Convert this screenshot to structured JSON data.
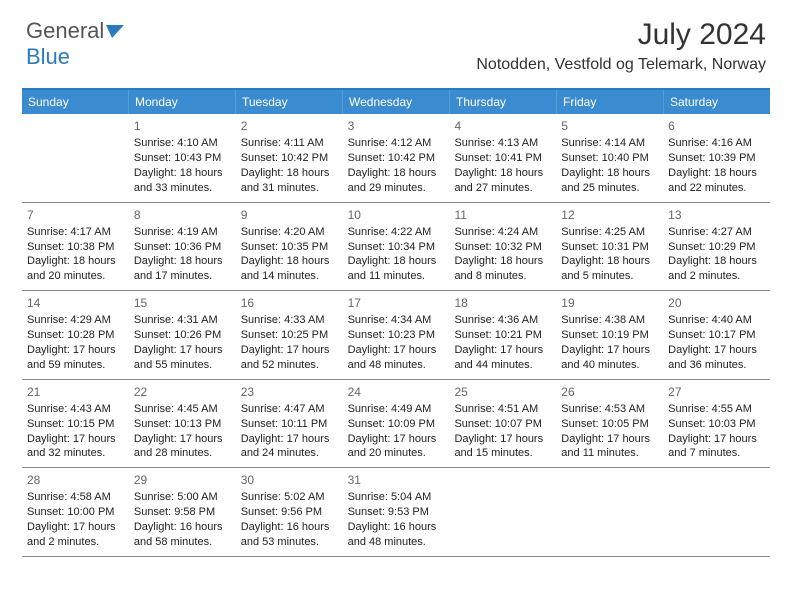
{
  "logo": {
    "part1": "General",
    "part2": "Blue"
  },
  "title": "July 2024",
  "location": "Notodden, Vestfold og Telemark, Norway",
  "colors": {
    "header_bg": "#3a8bd0",
    "accent": "#2b7bbf",
    "text": "#333333",
    "muted": "#666666",
    "border": "#888888"
  },
  "day_names": [
    "Sunday",
    "Monday",
    "Tuesday",
    "Wednesday",
    "Thursday",
    "Friday",
    "Saturday"
  ],
  "weeks": [
    [
      {
        "blank": true
      },
      {
        "n": "1",
        "sr": "Sunrise: 4:10 AM",
        "ss": "Sunset: 10:43 PM",
        "d1": "Daylight: 18 hours",
        "d2": "and 33 minutes."
      },
      {
        "n": "2",
        "sr": "Sunrise: 4:11 AM",
        "ss": "Sunset: 10:42 PM",
        "d1": "Daylight: 18 hours",
        "d2": "and 31 minutes."
      },
      {
        "n": "3",
        "sr": "Sunrise: 4:12 AM",
        "ss": "Sunset: 10:42 PM",
        "d1": "Daylight: 18 hours",
        "d2": "and 29 minutes."
      },
      {
        "n": "4",
        "sr": "Sunrise: 4:13 AM",
        "ss": "Sunset: 10:41 PM",
        "d1": "Daylight: 18 hours",
        "d2": "and 27 minutes."
      },
      {
        "n": "5",
        "sr": "Sunrise: 4:14 AM",
        "ss": "Sunset: 10:40 PM",
        "d1": "Daylight: 18 hours",
        "d2": "and 25 minutes."
      },
      {
        "n": "6",
        "sr": "Sunrise: 4:16 AM",
        "ss": "Sunset: 10:39 PM",
        "d1": "Daylight: 18 hours",
        "d2": "and 22 minutes."
      }
    ],
    [
      {
        "n": "7",
        "sr": "Sunrise: 4:17 AM",
        "ss": "Sunset: 10:38 PM",
        "d1": "Daylight: 18 hours",
        "d2": "and 20 minutes."
      },
      {
        "n": "8",
        "sr": "Sunrise: 4:19 AM",
        "ss": "Sunset: 10:36 PM",
        "d1": "Daylight: 18 hours",
        "d2": "and 17 minutes."
      },
      {
        "n": "9",
        "sr": "Sunrise: 4:20 AM",
        "ss": "Sunset: 10:35 PM",
        "d1": "Daylight: 18 hours",
        "d2": "and 14 minutes."
      },
      {
        "n": "10",
        "sr": "Sunrise: 4:22 AM",
        "ss": "Sunset: 10:34 PM",
        "d1": "Daylight: 18 hours",
        "d2": "and 11 minutes."
      },
      {
        "n": "11",
        "sr": "Sunrise: 4:24 AM",
        "ss": "Sunset: 10:32 PM",
        "d1": "Daylight: 18 hours",
        "d2": "and 8 minutes."
      },
      {
        "n": "12",
        "sr": "Sunrise: 4:25 AM",
        "ss": "Sunset: 10:31 PM",
        "d1": "Daylight: 18 hours",
        "d2": "and 5 minutes."
      },
      {
        "n": "13",
        "sr": "Sunrise: 4:27 AM",
        "ss": "Sunset: 10:29 PM",
        "d1": "Daylight: 18 hours",
        "d2": "and 2 minutes."
      }
    ],
    [
      {
        "n": "14",
        "sr": "Sunrise: 4:29 AM",
        "ss": "Sunset: 10:28 PM",
        "d1": "Daylight: 17 hours",
        "d2": "and 59 minutes."
      },
      {
        "n": "15",
        "sr": "Sunrise: 4:31 AM",
        "ss": "Sunset: 10:26 PM",
        "d1": "Daylight: 17 hours",
        "d2": "and 55 minutes."
      },
      {
        "n": "16",
        "sr": "Sunrise: 4:33 AM",
        "ss": "Sunset: 10:25 PM",
        "d1": "Daylight: 17 hours",
        "d2": "and 52 minutes."
      },
      {
        "n": "17",
        "sr": "Sunrise: 4:34 AM",
        "ss": "Sunset: 10:23 PM",
        "d1": "Daylight: 17 hours",
        "d2": "and 48 minutes."
      },
      {
        "n": "18",
        "sr": "Sunrise: 4:36 AM",
        "ss": "Sunset: 10:21 PM",
        "d1": "Daylight: 17 hours",
        "d2": "and 44 minutes."
      },
      {
        "n": "19",
        "sr": "Sunrise: 4:38 AM",
        "ss": "Sunset: 10:19 PM",
        "d1": "Daylight: 17 hours",
        "d2": "and 40 minutes."
      },
      {
        "n": "20",
        "sr": "Sunrise: 4:40 AM",
        "ss": "Sunset: 10:17 PM",
        "d1": "Daylight: 17 hours",
        "d2": "and 36 minutes."
      }
    ],
    [
      {
        "n": "21",
        "sr": "Sunrise: 4:43 AM",
        "ss": "Sunset: 10:15 PM",
        "d1": "Daylight: 17 hours",
        "d2": "and 32 minutes."
      },
      {
        "n": "22",
        "sr": "Sunrise: 4:45 AM",
        "ss": "Sunset: 10:13 PM",
        "d1": "Daylight: 17 hours",
        "d2": "and 28 minutes."
      },
      {
        "n": "23",
        "sr": "Sunrise: 4:47 AM",
        "ss": "Sunset: 10:11 PM",
        "d1": "Daylight: 17 hours",
        "d2": "and 24 minutes."
      },
      {
        "n": "24",
        "sr": "Sunrise: 4:49 AM",
        "ss": "Sunset: 10:09 PM",
        "d1": "Daylight: 17 hours",
        "d2": "and 20 minutes."
      },
      {
        "n": "25",
        "sr": "Sunrise: 4:51 AM",
        "ss": "Sunset: 10:07 PM",
        "d1": "Daylight: 17 hours",
        "d2": "and 15 minutes."
      },
      {
        "n": "26",
        "sr": "Sunrise: 4:53 AM",
        "ss": "Sunset: 10:05 PM",
        "d1": "Daylight: 17 hours",
        "d2": "and 11 minutes."
      },
      {
        "n": "27",
        "sr": "Sunrise: 4:55 AM",
        "ss": "Sunset: 10:03 PM",
        "d1": "Daylight: 17 hours",
        "d2": "and 7 minutes."
      }
    ],
    [
      {
        "n": "28",
        "sr": "Sunrise: 4:58 AM",
        "ss": "Sunset: 10:00 PM",
        "d1": "Daylight: 17 hours",
        "d2": "and 2 minutes."
      },
      {
        "n": "29",
        "sr": "Sunrise: 5:00 AM",
        "ss": "Sunset: 9:58 PM",
        "d1": "Daylight: 16 hours",
        "d2": "and 58 minutes."
      },
      {
        "n": "30",
        "sr": "Sunrise: 5:02 AM",
        "ss": "Sunset: 9:56 PM",
        "d1": "Daylight: 16 hours",
        "d2": "and 53 minutes."
      },
      {
        "n": "31",
        "sr": "Sunrise: 5:04 AM",
        "ss": "Sunset: 9:53 PM",
        "d1": "Daylight: 16 hours",
        "d2": "and 48 minutes."
      },
      {
        "blank": true
      },
      {
        "blank": true
      },
      {
        "blank": true
      }
    ]
  ]
}
